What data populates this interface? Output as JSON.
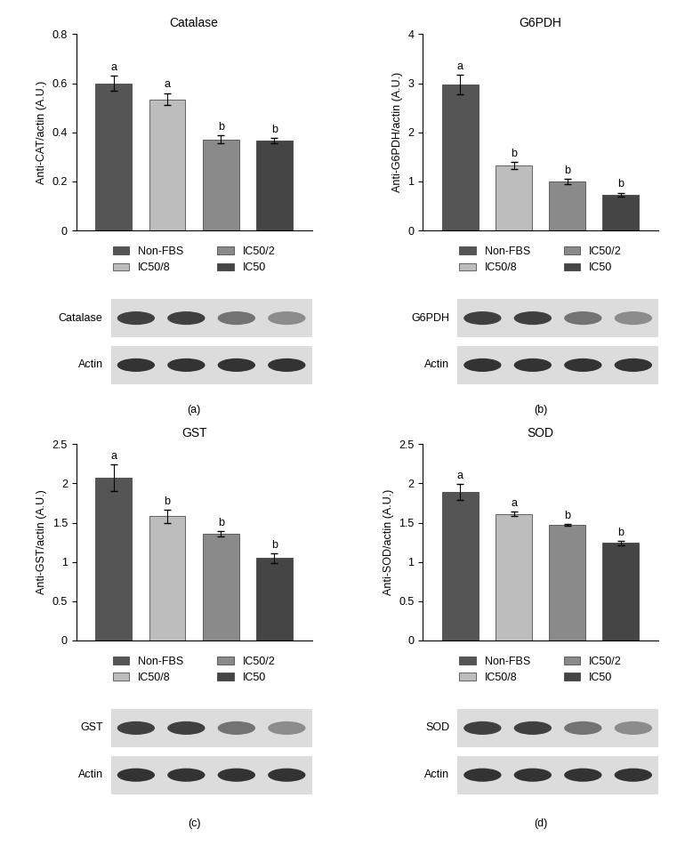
{
  "chart_data": [
    {
      "type": "bar",
      "title": "Catalase",
      "y_label": "Anti-CAT/actin (A.U.)",
      "categories": [
        "Non-FBS",
        "IC50/8",
        "IC50/2",
        "IC50"
      ],
      "values": [
        0.6,
        0.535,
        0.372,
        0.367
      ],
      "errors": [
        0.03,
        0.025,
        0.017,
        0.01
      ],
      "group_letters": [
        "a",
        "a",
        "b",
        "b"
      ],
      "colors": [
        "#555555",
        "#bdbdbd",
        "#8a8a8a",
        "#454545"
      ],
      "ylim": [
        0,
        0.8
      ],
      "yticks": [
        0,
        0.2,
        0.4,
        0.6,
        0.8
      ],
      "legend": "upper center",
      "tick_labels": "y",
      "panel": "(a)",
      "blot_labels": [
        "Catalase",
        "Actin"
      ]
    },
    {
      "type": "bar",
      "title": "G6PDH",
      "y_label": "Anti-G6PDH/actin (A.U.)",
      "categories": [
        "Non-FBS",
        "IC50/8",
        "IC50/2",
        "IC50"
      ],
      "values": [
        2.97,
        1.33,
        1.0,
        0.73
      ],
      "errors": [
        0.2,
        0.07,
        0.05,
        0.04
      ],
      "group_letters": [
        "a",
        "b",
        "b",
        "b"
      ],
      "colors": [
        "#555555",
        "#bdbdbd",
        "#8a8a8a",
        "#454545"
      ],
      "ylim": [
        0,
        4
      ],
      "yticks": [
        0,
        1,
        2,
        3,
        4
      ],
      "legend": "upper center",
      "tick_labels": "y",
      "panel": "(b)",
      "blot_labels": [
        "G6PDH",
        "Actin"
      ]
    },
    {
      "type": "bar",
      "title": "GST",
      "y_label": "Anti-GST/actin (A.U.)",
      "categories": [
        "Non-FBS",
        "IC50/8",
        "IC50/2",
        "IC50"
      ],
      "values": [
        2.07,
        1.58,
        1.36,
        1.05
      ],
      "errors": [
        0.17,
        0.08,
        0.03,
        0.06
      ],
      "group_letters": [
        "a",
        "b",
        "b",
        "b"
      ],
      "colors": [
        "#555555",
        "#bdbdbd",
        "#8a8a8a",
        "#454545"
      ],
      "ylim": [
        0,
        2.5
      ],
      "yticks": [
        0,
        0.5,
        1,
        1.5,
        2,
        2.5
      ],
      "legend": "upper center",
      "tick_labels": "y",
      "panel": "(c)",
      "blot_labels": [
        "GST",
        "Actin"
      ]
    },
    {
      "type": "bar",
      "title": "SOD",
      "y_label": "Anti-SOD/actin (A.U.)",
      "categories": [
        "Non-FBS",
        "IC50/8",
        "IC50/2",
        "IC50"
      ],
      "values": [
        1.89,
        1.61,
        1.47,
        1.24
      ],
      "errors": [
        0.1,
        0.03,
        0.015,
        0.03
      ],
      "group_letters": [
        "a",
        "a",
        "b",
        "b"
      ],
      "colors": [
        "#555555",
        "#bdbdbd",
        "#8a8a8a",
        "#454545"
      ],
      "ylim": [
        0,
        2.5
      ],
      "yticks": [
        0,
        0.5,
        1,
        1.5,
        2,
        2.5
      ],
      "legend": "upper center",
      "tick_labels": "y",
      "panel": "(d)",
      "blot_labels": [
        "SOD",
        "Actin"
      ]
    }
  ]
}
